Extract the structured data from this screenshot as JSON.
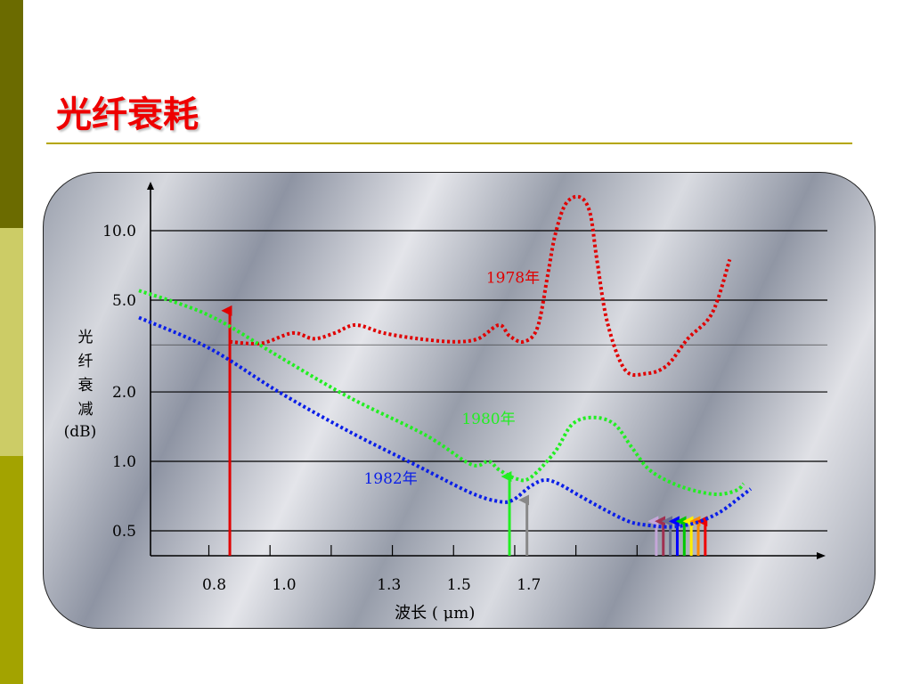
{
  "slide": {
    "title": "光纤衰耗"
  },
  "chart_data": {
    "type": "line",
    "yscale": "log",
    "ylim": [
      0.42,
      16
    ],
    "xlim": [
      0.6,
      2.35
    ],
    "ylabel": [
      "光",
      "纤",
      "衰",
      "减",
      "(dB)"
    ],
    "xlabel": "波长 ( μm)",
    "x_ticks": [
      0.8,
      1.0,
      1.3,
      1.5,
      1.7
    ],
    "x_tick_labels": [
      "0.8",
      "1.0",
      "1.3",
      "1.5",
      "1.7"
    ],
    "y_ticks": [
      10.0,
      5.0,
      2.0,
      1.0,
      0.5
    ],
    "y_tick_labels": [
      "10.0",
      "5.0",
      "2.0",
      "1.0",
      "0.5"
    ],
    "grid": true,
    "series": [
      {
        "name": "1978年",
        "color": "#e00000",
        "points": [
          [
            0.86,
            3.3
          ],
          [
            0.95,
            3.25
          ],
          [
            1.04,
            3.6
          ],
          [
            1.1,
            3.4
          ],
          [
            1.16,
            3.6
          ],
          [
            1.22,
            3.9
          ],
          [
            1.3,
            3.6
          ],
          [
            1.4,
            3.4
          ],
          [
            1.5,
            3.3
          ],
          [
            1.57,
            3.4
          ],
          [
            1.63,
            3.9
          ],
          [
            1.66,
            3.5
          ],
          [
            1.7,
            3.3
          ],
          [
            1.74,
            3.8
          ],
          [
            1.77,
            6.5
          ],
          [
            1.79,
            9.5
          ],
          [
            1.82,
            13
          ],
          [
            1.86,
            14
          ],
          [
            1.89,
            12
          ],
          [
            1.91,
            7.5
          ],
          [
            1.94,
            4.0
          ],
          [
            1.99,
            2.5
          ],
          [
            2.05,
            2.4
          ],
          [
            2.11,
            2.6
          ],
          [
            2.17,
            3.4
          ],
          [
            2.24,
            4.4
          ],
          [
            2.29,
            7.5
          ]
        ]
      },
      {
        "name": "1980年",
        "color": "#22ee22",
        "points": [
          [
            0.6,
            5.5
          ],
          [
            0.8,
            4.3
          ],
          [
            1.0,
            2.85
          ],
          [
            1.2,
            1.9
          ],
          [
            1.42,
            1.3
          ],
          [
            1.55,
            0.97
          ],
          [
            1.6,
            1.0
          ],
          [
            1.63,
            0.92
          ],
          [
            1.68,
            0.84
          ],
          [
            1.72,
            0.85
          ],
          [
            1.79,
            1.1
          ],
          [
            1.84,
            1.45
          ],
          [
            1.9,
            1.55
          ],
          [
            1.96,
            1.45
          ],
          [
            2.01,
            1.15
          ],
          [
            2.06,
            0.92
          ],
          [
            2.13,
            0.8
          ],
          [
            2.2,
            0.74
          ],
          [
            2.26,
            0.72
          ],
          [
            2.31,
            0.75
          ],
          [
            2.33,
            0.8
          ]
        ]
      },
      {
        "name": "1982年",
        "color": "#0a1ee8",
        "points": [
          [
            0.6,
            4.2
          ],
          [
            0.8,
            3.1
          ],
          [
            1.0,
            2.0
          ],
          [
            1.2,
            1.35
          ],
          [
            1.4,
            0.95
          ],
          [
            1.55,
            0.73
          ],
          [
            1.63,
            0.67
          ],
          [
            1.67,
            0.68
          ],
          [
            1.72,
            0.78
          ],
          [
            1.76,
            0.83
          ],
          [
            1.8,
            0.8
          ],
          [
            1.86,
            0.71
          ],
          [
            1.93,
            0.62
          ],
          [
            2.0,
            0.55
          ],
          [
            2.05,
            0.53
          ],
          [
            2.12,
            0.52
          ],
          [
            2.19,
            0.54
          ],
          [
            2.26,
            0.6
          ],
          [
            2.32,
            0.7
          ],
          [
            2.35,
            0.76
          ]
        ]
      }
    ],
    "series_labels": [
      {
        "text": "1978年",
        "color": "#e00000",
        "x": 1.67,
        "y": 5.95
      },
      {
        "text": "1980年",
        "color": "#22ee22",
        "x": 1.6,
        "y": 1.45
      },
      {
        "text": "1982年",
        "color": "#0a1ee8",
        "x": 1.32,
        "y": 0.8
      }
    ],
    "annotations": {
      "dotted_reference_level": 3.2,
      "arrows": [
        {
          "x": 0.86,
          "y": 4.5,
          "color": "#e00000"
        },
        {
          "x": 1.66,
          "y": 0.86,
          "color": "#22ee22"
        },
        {
          "x": 1.71,
          "y": 0.68,
          "color": "#888888"
        },
        {
          "x": 2.08,
          "y": 0.55,
          "color": "#c4a6d8"
        },
        {
          "x": 2.1,
          "y": 0.55,
          "color": "#a03050"
        },
        {
          "x": 2.12,
          "y": 0.55,
          "color": "#6a7090"
        },
        {
          "x": 2.14,
          "y": 0.55,
          "color": "#0000ff"
        },
        {
          "x": 2.16,
          "y": 0.55,
          "color": "#00c800"
        },
        {
          "x": 2.18,
          "y": 0.55,
          "color": "#ffee00"
        },
        {
          "x": 2.2,
          "y": 0.55,
          "color": "#ff8800"
        },
        {
          "x": 2.22,
          "y": 0.55,
          "color": "#ee0000"
        }
      ]
    }
  }
}
